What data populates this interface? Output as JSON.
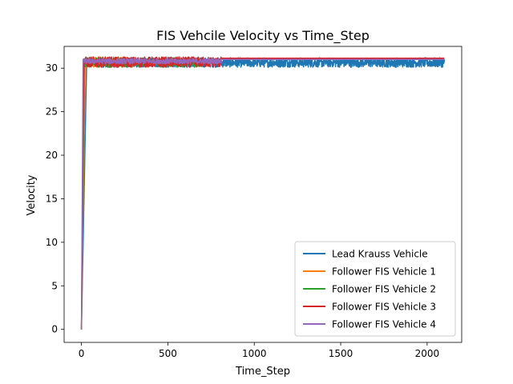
{
  "chart_data": {
    "type": "line",
    "title": "FIS Vehcile Velocity vs Time_Step",
    "xlabel": "Time_Step",
    "ylabel": "Velocity",
    "xlim": [
      -100,
      2200
    ],
    "ylim": [
      -1.5,
      32.5
    ],
    "xticks": [
      0,
      500,
      1000,
      1500,
      2000
    ],
    "yticks": [
      0,
      5,
      10,
      15,
      20,
      25,
      30
    ],
    "legend_position": "lower-right",
    "grid": false,
    "series": [
      {
        "name": "Lead Krauss Vehicle",
        "color": "#1f77b4",
        "ramp": [
          [
            0,
            0
          ],
          [
            30,
            30.2
          ]
        ],
        "noise_range": [
          30,
          2100
        ],
        "noise_low": 30.1,
        "noise_high": 31.2
      },
      {
        "name": "Follower FIS Vehicle 1",
        "color": "#ff7f0e",
        "ramp": [
          [
            0,
            0
          ],
          [
            22,
            31.0
          ]
        ],
        "noise_range": [
          22,
          300
        ],
        "noise_low": 30.1,
        "noise_high": 31.3
      },
      {
        "name": "Follower FIS Vehicle 2",
        "color": "#2ca02c",
        "ramp": [
          [
            0,
            0
          ],
          [
            18,
            31.0
          ]
        ],
        "noise_range": [
          18,
          700
        ],
        "noise_low": 30.1,
        "noise_high": 31.2
      },
      {
        "name": "Follower FIS Vehicle 3",
        "color": "#d62728",
        "ramp": [
          [
            0,
            0
          ],
          [
            14,
            31.0
          ]
        ],
        "noise_range": [
          14,
          2100
        ],
        "noise_low": 30.1,
        "noise_high": 31.3,
        "noise_end_low": 810,
        "flat_after": 31.15
      },
      {
        "name": "Follower FIS Vehicle 4",
        "color": "#9467bd",
        "ramp": [
          [
            0,
            0
          ],
          [
            10,
            31.0
          ]
        ],
        "noise_range": [
          10,
          810
        ],
        "noise_low": 30.5,
        "noise_high": 31.1,
        "flat_after": 31.0
      }
    ]
  }
}
